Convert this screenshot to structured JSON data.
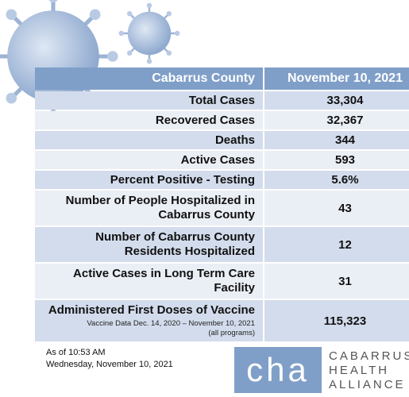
{
  "header": {
    "county_label": "Cabarrus County",
    "date_label": "November 10, 2021"
  },
  "rows": [
    {
      "label": "Total Cases",
      "value": "33,304"
    },
    {
      "label": "Recovered Cases",
      "value": "32,367"
    },
    {
      "label": "Deaths",
      "value": "344"
    },
    {
      "label": "Active Cases",
      "value": "593"
    },
    {
      "label": "Percent Positive - Testing",
      "value": "5.6%"
    },
    {
      "label": "Number of People Hospitalized in Cabarrus County",
      "value": "43"
    },
    {
      "label": "Number of Cabarrus County Residents Hospitalized",
      "value": "12"
    },
    {
      "label": "Active Cases in Long Term Care Facility",
      "value": "31"
    },
    {
      "label": "Administered First Doses of Vaccine",
      "note_line1": "Vaccine Data Dec. 14, 2020 – November 10, 2021",
      "note_line2": "(all programs)",
      "value": "115,323"
    }
  ],
  "footer": {
    "as_of": "As of 10:53 AM",
    "date": "Wednesday, November 10, 2021",
    "logo_mark": "cha",
    "logo_line1": "CABARRUS",
    "logo_line2": "HEALTH",
    "logo_line3": "ALLIANCE"
  },
  "colors": {
    "header": "#7f9fc8",
    "row_dark": "#d3dcec",
    "row_light": "#eaeff6"
  },
  "icons": [
    "virus-icon",
    "virus-icon"
  ]
}
